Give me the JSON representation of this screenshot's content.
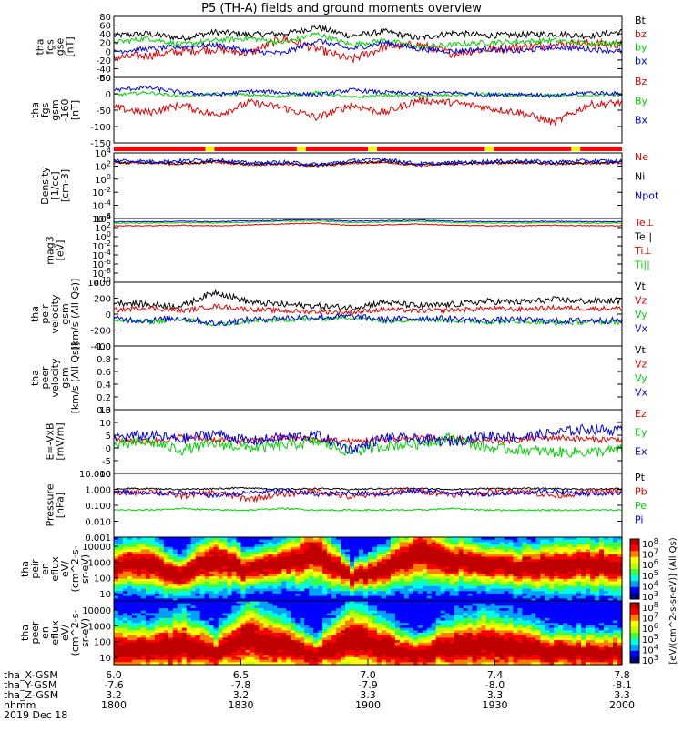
{
  "title": "P5 (TH-A) fields and ground moments overview",
  "colors": {
    "black": "#000000",
    "red": "#e00000",
    "green": "#00d000",
    "blue": "#0000e0",
    "yellow": "#ffff00",
    "bar_red": "#ff0000"
  },
  "chart_data": [
    {
      "id": "fgs_gse",
      "type": "line",
      "ylabel": [
        "tha",
        "fgs",
        "gse",
        "[nT]"
      ],
      "ylim": [
        -60,
        80
      ],
      "yticks": [
        "80",
        "60",
        "40",
        "20",
        "0",
        "-20",
        "-40",
        "-60"
      ],
      "legend": [
        {
          "name": "Bt",
          "color": "#000000"
        },
        {
          "name": "bz",
          "color": "#e00000"
        },
        {
          "name": "by",
          "color": "#00d000"
        },
        {
          "name": "bx",
          "color": "#0000e0"
        }
      ],
      "series": [
        {
          "name": "Bt",
          "color": "#000000",
          "base": 38,
          "amp": 7,
          "y": [
            36,
            40,
            30,
            44,
            38,
            40,
            55,
            35,
            45,
            30,
            42,
            36,
            38,
            40,
            35,
            45
          ]
        },
        {
          "name": "bz",
          "color": "#e00000",
          "base": 0,
          "amp": 10,
          "y": [
            -15,
            -10,
            0,
            5,
            -5,
            30,
            5,
            -20,
            10,
            15,
            -5,
            5,
            10,
            15,
            18,
            15
          ]
        },
        {
          "name": "by",
          "color": "#00d000",
          "base": 20,
          "amp": 6,
          "y": [
            20,
            30,
            15,
            25,
            30,
            20,
            40,
            15,
            25,
            10,
            15,
            20,
            22,
            25,
            18,
            20
          ]
        },
        {
          "name": "bx",
          "color": "#0000e0",
          "base": 0,
          "amp": 6,
          "y": [
            0,
            5,
            10,
            15,
            0,
            -5,
            25,
            5,
            20,
            5,
            0,
            5,
            0,
            10,
            5,
            0
          ]
        }
      ]
    },
    {
      "id": "fgs_gsm",
      "type": "line",
      "ylabel": [
        "tha",
        "fgs",
        "gsm",
        "-160",
        "[nT]"
      ],
      "ylim": [
        -180,
        80
      ],
      "yticks": [
        "50",
        "0",
        "-50",
        "-100",
        "-150"
      ],
      "legend": [
        {
          "name": "Bz",
          "color": "#e00000"
        },
        {
          "name": "By",
          "color": "#00d000"
        },
        {
          "name": "Bx",
          "color": "#0000e0"
        }
      ],
      "series": [
        {
          "name": "Bz",
          "color": "#e00000",
          "base": -40,
          "amp": 15,
          "y": [
            -40,
            -60,
            -30,
            -70,
            -20,
            -40,
            -80,
            -30,
            -60,
            -10,
            -20,
            -40,
            -60,
            -100,
            -30,
            -20
          ]
        },
        {
          "name": "By",
          "color": "#00d000",
          "base": 10,
          "amp": 6,
          "y": [
            10,
            20,
            5,
            15,
            10,
            5,
            20,
            0,
            10,
            5,
            10,
            15,
            5,
            10,
            10,
            10
          ]
        },
        {
          "name": "Bx",
          "color": "#0000e0",
          "base": 20,
          "amp": 8,
          "y": [
            30,
            40,
            20,
            10,
            25,
            20,
            10,
            30,
            20,
            15,
            20,
            10,
            15,
            5,
            20,
            15
          ]
        }
      ]
    },
    {
      "id": "density",
      "type": "line",
      "log": true,
      "ylabel": [
        "Density",
        "[1/cc]",
        "[cm-3]"
      ],
      "ylim": [
        -6,
        4
      ],
      "yticks": [
        "10^4",
        "10^2",
        "10^0",
        "10^-2",
        "10^-4",
        "10^-6"
      ],
      "legend": [
        {
          "name": "Ne",
          "color": "#e00000"
        },
        {
          "name": "Ni",
          "color": "#000000"
        },
        {
          "name": "Npot",
          "color": "#0000e0"
        }
      ],
      "series": [
        {
          "name": "Ne",
          "color": "#e00000",
          "base": 2.4,
          "amp": 0.2,
          "y": [
            2.5,
            2.4,
            2.3,
            2.6,
            2.2,
            2.3,
            2.0,
            2.4,
            2.6,
            2.1,
            2.3,
            2.4,
            2.5,
            2.3,
            2.4,
            2.5
          ]
        },
        {
          "name": "Ni",
          "color": "#000000",
          "base": 2.5,
          "amp": 0.2,
          "y": [
            2.6,
            2.5,
            2.4,
            2.7,
            2.3,
            2.4,
            2.1,
            2.5,
            2.7,
            2.2,
            2.4,
            2.5,
            2.6,
            2.4,
            2.5,
            2.6
          ]
        },
        {
          "name": "Npot",
          "color": "#0000e0",
          "base": 2.7,
          "amp": 0.3,
          "y": [
            2.9,
            2.7,
            2.8,
            3.0,
            2.4,
            2.6,
            2.2,
            2.8,
            3.1,
            2.3,
            2.5,
            2.7,
            2.8,
            2.6,
            2.8,
            2.7
          ]
        }
      ]
    },
    {
      "id": "temperature",
      "type": "line",
      "log": true,
      "ylabel": [
        "mag3",
        "[eV]"
      ],
      "ylim": [
        -10,
        4
      ],
      "yticks": [
        "10^4",
        "10^2",
        "10^0",
        "10^-2",
        "10^-4",
        "10^-6",
        "10^-8",
        "10^-10"
      ],
      "legend": [
        {
          "name": "Te⊥",
          "color": "#e00000"
        },
        {
          "name": "Te||",
          "color": "#000000"
        },
        {
          "name": "Ti⊥",
          "color": "#e00000"
        },
        {
          "name": "Ti||",
          "color": "#00d000"
        }
      ],
      "series": [
        {
          "name": "Te",
          "color": "#e00000",
          "base": 2.4,
          "amp": 0.1,
          "y": [
            2.4,
            2.4,
            2.5,
            2.4,
            2.6,
            2.8,
            3.0,
            2.5,
            2.6,
            2.8,
            2.5,
            2.4,
            2.4,
            2.5,
            2.4,
            2.4
          ]
        },
        {
          "name": "Ti",
          "color": "#00d000",
          "base": 3.0,
          "amp": 0.1,
          "y": [
            3.0,
            3.0,
            3.1,
            3.0,
            3.2,
            3.4,
            3.5,
            3.1,
            3.2,
            3.4,
            3.1,
            3.0,
            3.0,
            3.1,
            3.0,
            3.0
          ]
        },
        {
          "name": "Tb",
          "color": "#0000e0",
          "base": 3.3,
          "amp": 0.1,
          "y": [
            3.3,
            3.3,
            3.4,
            3.3,
            3.5,
            3.6,
            3.8,
            3.4,
            3.5,
            3.7,
            3.4,
            3.3,
            3.3,
            3.4,
            3.3,
            3.3
          ]
        }
      ]
    },
    {
      "id": "peir_velocity",
      "type": "line",
      "ylabel": [
        "tha",
        "peir",
        "velocity",
        "gsm",
        "[km/s (All Qs)]"
      ],
      "ylim": [
        -400,
        400
      ],
      "yticks": [
        "400",
        "200",
        "0",
        "-200",
        "-400"
      ],
      "legend": [
        {
          "name": "Vt",
          "color": "#000000"
        },
        {
          "name": "Vz",
          "color": "#e00000"
        },
        {
          "name": "Vy",
          "color": "#00d000"
        },
        {
          "name": "Vx",
          "color": "#0000e0"
        }
      ],
      "series": [
        {
          "name": "Vt",
          "color": "#000000",
          "base": 150,
          "amp": 40,
          "y": [
            150,
            120,
            100,
            280,
            150,
            120,
            100,
            80,
            150,
            100,
            120,
            160,
            150,
            180,
            160,
            170
          ]
        },
        {
          "name": "Vz",
          "color": "#e00000",
          "base": 50,
          "amp": 30,
          "y": [
            50,
            80,
            40,
            100,
            60,
            40,
            30,
            20,
            60,
            40,
            50,
            70,
            60,
            80,
            70,
            70
          ]
        },
        {
          "name": "Vy",
          "color": "#00d000",
          "base": -80,
          "amp": 30,
          "y": [
            -80,
            -100,
            -60,
            -140,
            -90,
            -70,
            -60,
            -40,
            -90,
            -60,
            -80,
            -100,
            -90,
            -110,
            -100,
            -100
          ]
        },
        {
          "name": "Vx",
          "color": "#0000e0",
          "base": -60,
          "amp": 40,
          "y": [
            -60,
            -80,
            -50,
            -120,
            -70,
            -50,
            -40,
            -30,
            -70,
            -50,
            -60,
            -80,
            -70,
            -90,
            -80,
            -80
          ]
        }
      ]
    },
    {
      "id": "peer_velocity",
      "type": "line",
      "ylabel": [
        "tha",
        "peer",
        "velocity",
        "gsm",
        "[km/s (All Qs)]"
      ],
      "ylim": [
        0,
        1
      ],
      "yticks": [
        "1.0",
        "0.8",
        "0.6",
        "0.4",
        "0.2",
        "0.0"
      ],
      "legend": [
        {
          "name": "Vt",
          "color": "#000000"
        },
        {
          "name": "Vz",
          "color": "#e00000"
        },
        {
          "name": "Vy",
          "color": "#00d000"
        },
        {
          "name": "Vx",
          "color": "#0000e0"
        }
      ],
      "series": []
    },
    {
      "id": "efield",
      "type": "line",
      "ylabel": [
        "E=-VxB",
        "[mV/m]"
      ],
      "ylim": [
        -15,
        15
      ],
      "yticks": [
        "15",
        "10",
        "5",
        "0",
        "-5",
        "-10"
      ],
      "legend": [
        {
          "name": "Ez",
          "color": "#e00000"
        },
        {
          "name": "Ey",
          "color": "#00d000"
        },
        {
          "name": "Ex",
          "color": "#0000e0"
        }
      ],
      "series": [
        {
          "name": "Ez",
          "color": "#e00000",
          "base": 1,
          "amp": 1.5,
          "y": [
            1,
            0,
            2,
            1,
            0,
            2,
            1,
            0,
            1,
            2,
            1,
            0,
            1,
            2,
            1,
            1
          ]
        },
        {
          "name": "Ey",
          "color": "#00d000",
          "base": -2,
          "amp": 2.5,
          "y": [
            -2,
            0,
            -4,
            -1,
            -3,
            -2,
            0,
            -5,
            -2,
            -1,
            2,
            -3,
            -4,
            -5,
            -5,
            -4
          ]
        },
        {
          "name": "Ex",
          "color": "#0000e0",
          "base": 2,
          "amp": 2.5,
          "y": [
            2,
            3,
            1,
            4,
            0,
            2,
            3,
            -4,
            2,
            1,
            0,
            3,
            2,
            4,
            6,
            5
          ]
        }
      ]
    },
    {
      "id": "pressure",
      "type": "line",
      "log": true,
      "ylabel": [
        "Pressure",
        "[nPa]"
      ],
      "ylim": [
        -3,
        1
      ],
      "yticks": [
        "10.000",
        "1.000",
        "0.100",
        "0.010",
        "0.001"
      ],
      "legend": [
        {
          "name": "Pt",
          "color": "#000000"
        },
        {
          "name": "Pb",
          "color": "#e00000"
        },
        {
          "name": "Pe",
          "color": "#00d000"
        },
        {
          "name": "Pi",
          "color": "#0000e0"
        }
      ],
      "series": [
        {
          "name": "Pt",
          "color": "#000000",
          "base": 0.05,
          "amp": 0.05,
          "y": [
            0.05,
            0.05,
            0.0,
            0.05,
            0.1,
            0.0,
            0.05,
            0.0,
            0.05,
            0.05,
            0.0,
            0.05,
            0.05,
            0.05,
            0.0,
            0.05
          ]
        },
        {
          "name": "Pb",
          "color": "#e00000",
          "base": -0.2,
          "amp": 0.2,
          "y": [
            -0.3,
            -0.1,
            -0.4,
            -0.2,
            -0.6,
            -0.3,
            -0.1,
            -0.5,
            -0.2,
            -0.1,
            -0.3,
            -0.2,
            -0.1,
            -0.4,
            -0.2,
            -0.1
          ]
        },
        {
          "name": "Pe",
          "color": "#00d000",
          "base": -1.3,
          "amp": 0.05,
          "y": [
            -1.3,
            -1.3,
            -1.2,
            -1.3,
            -1.3,
            -1.2,
            -1.3,
            -1.3,
            -1.3,
            -1.3,
            -1.2,
            -1.3,
            -1.3,
            -1.3,
            -1.3,
            -1.3
          ]
        },
        {
          "name": "Pi",
          "color": "#0000e0",
          "base": -0.2,
          "amp": 0.15,
          "y": [
            -0.1,
            -0.3,
            -0.2,
            -0.4,
            -0.2,
            -0.1,
            -0.3,
            -0.2,
            -0.3,
            -0.1,
            -0.2,
            -0.3,
            -0.2,
            -0.1,
            -0.3,
            -0.2
          ]
        }
      ]
    },
    {
      "id": "peir_spec",
      "type": "heatmap",
      "ylabel": [
        "tha",
        "peir",
        "en",
        "eflux",
        "eV/",
        "(cm^2-s-",
        "sr-eV)"
      ],
      "yticks": [
        "10000",
        "1000",
        "100",
        "10"
      ],
      "ylim": [
        1,
        4.3
      ],
      "peak": [
        2.8,
        2.9,
        2.3,
        3.2,
        2.5,
        3.0,
        3.4,
        2.2,
        2.6,
        3.5,
        3.1,
        2.9,
        2.7,
        2.8,
        2.9,
        2.8
      ],
      "width": [
        0.6,
        0.7,
        0.5,
        0.8,
        0.5,
        0.6,
        0.9,
        0.4,
        0.6,
        0.9,
        0.7,
        0.6,
        0.6,
        0.7,
        0.7,
        0.7
      ]
    },
    {
      "id": "peer_spec",
      "type": "heatmap",
      "ylabel": [
        "tha",
        "peer",
        "en",
        "eflux",
        "eV/",
        "(cm^2-s-",
        "sr-eV)"
      ],
      "yticks": [
        "10000",
        "1000",
        "100",
        "10"
      ],
      "ylim": [
        1,
        4.3
      ],
      "peak": [
        1.8,
        1.7,
        2.0,
        1.6,
        2.3,
        1.9,
        1.5,
        2.4,
        1.8,
        1.5,
        1.9,
        2.0,
        1.8,
        1.6,
        1.6,
        1.6
      ],
      "width": [
        0.8,
        0.7,
        0.9,
        0.6,
        1.0,
        0.8,
        0.5,
        1.0,
        0.8,
        0.5,
        0.8,
        0.9,
        0.8,
        0.6,
        0.6,
        0.6
      ]
    }
  ],
  "colorbar": {
    "label": "[eV/(cm^2-s-sr-eV)] (All Qs)",
    "ticks_top": [
      "10^8",
      "10^7",
      "10^6",
      "10^5",
      "10^4",
      "10^3"
    ],
    "ticks_bottom": [
      "10^8",
      "10^7",
      "10^6",
      "10^5",
      "10^4",
      "10^3"
    ]
  },
  "xaxis": {
    "rows": [
      {
        "label": "tha_X-GSM",
        "values": [
          "6.0",
          "6.5",
          "7.0",
          "7.4",
          "7.8"
        ]
      },
      {
        "label": "tha_Y-GSM",
        "values": [
          "-7.6",
          "-7.8",
          "-7.9",
          "-8.0",
          "-8.1"
        ]
      },
      {
        "label": "tha_Z-GSM",
        "values": [
          "3.2",
          "3.2",
          "3.3",
          "3.3",
          "3.3"
        ]
      },
      {
        "label": "hhmm",
        "values": [
          "1800",
          "1830",
          "1900",
          "1930",
          "2000"
        ]
      }
    ],
    "date": "2019 Dec 18"
  }
}
